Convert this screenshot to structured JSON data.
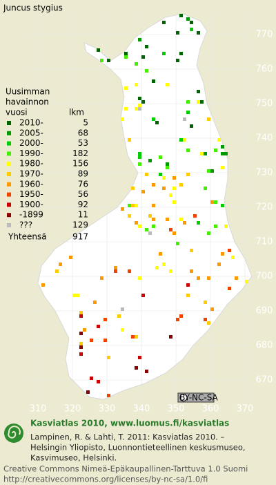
{
  "title": "Juncus stygius",
  "legend": {
    "heading": [
      "Uusimman",
      "havainnon",
      "vuosi"
    ],
    "count_heading": "lkm",
    "rows": [
      {
        "label": "2010-",
        "count": 5,
        "color": "#006400"
      },
      {
        "label": "2005-",
        "count": 68,
        "color": "#009a00"
      },
      {
        "label": "2000-",
        "count": 53,
        "color": "#00cc00"
      },
      {
        "label": "1990-",
        "count": 182,
        "color": "#44ee00"
      },
      {
        "label": "1980-",
        "count": 156,
        "color": "#ffff00"
      },
      {
        "label": "1970-",
        "count": 89,
        "color": "#ffcc00"
      },
      {
        "label": "1960-",
        "count": 76,
        "color": "#ff9900"
      },
      {
        "label": "1950-",
        "count": 56,
        "color": "#ee4400"
      },
      {
        "label": "1900-",
        "count": 92,
        "color": "#cc0000"
      },
      {
        "label": "-1899",
        "count": 11,
        "color": "#880000"
      },
      {
        "label": "???",
        "count": 129,
        "color": "#bbbbbb"
      }
    ],
    "total_label": "Yhteensä",
    "total": 917
  },
  "grid": {
    "y_labels": [
      770,
      760,
      750,
      740,
      730,
      720,
      710,
      700,
      690,
      680,
      670
    ],
    "x_labels": [
      310,
      320,
      330,
      340,
      350,
      360,
      370
    ]
  },
  "license_badge": "BY-NC-SA",
  "footer": {
    "brand": "Kasviatlas 2010, www.luomus.fi/kasviatlas",
    "citation": [
      "Lampinen, R. & Lahti, T. 2011: Kasviatlas 2010. –",
      "Helsingin Yliopisto, Luonnontieteellinen keskusmuseo,",
      "Kasvimuseo, Helsinki."
    ],
    "license": [
      "Creative Commons Nimeä-Epäkaupallinen-Tarttuva 1.0 Suomi",
      "http://creativecommons.org/licenses/by-nc-sa/1.0/fi"
    ]
  }
}
